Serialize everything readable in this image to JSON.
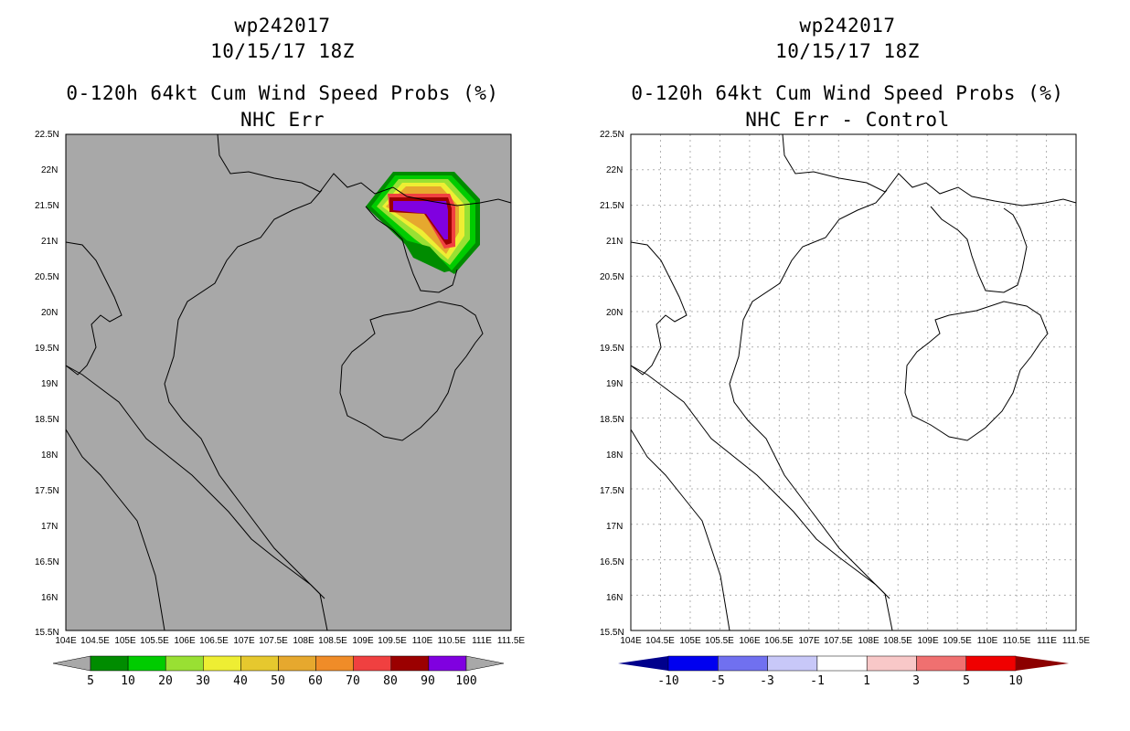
{
  "colors": {
    "land_bg_left": "#a8a8a8",
    "map_bg_right": "#ffffff",
    "grid": "#b0b0b0"
  },
  "left_panel": {
    "title_line1": "wp242017",
    "title_line2": "10/15/17 18Z",
    "title_line3": "0-120h 64kt Cum Wind Speed Probs (%)",
    "title_line4": "NHC Err",
    "colorbar": {
      "colors": [
        "#008c00",
        "#00cc00",
        "#99e033",
        "#eeee33",
        "#e6c82e",
        "#e6a82e",
        "#f08c28",
        "#f04040",
        "#9b0000",
        "#8000e0"
      ],
      "labels": [
        "5",
        "10",
        "20",
        "30",
        "40",
        "50",
        "60",
        "70",
        "80",
        "90",
        "100"
      ]
    }
  },
  "right_panel": {
    "title_line1": "wp242017",
    "title_line2": "10/15/17 18Z",
    "title_line3": "0-120h 64kt Cum Wind Speed Probs (%)",
    "title_line4": "NHC Err - Control",
    "colorbar": {
      "colors": [
        "#00008c",
        "#0000f0",
        "#7070f0",
        "#c8c8f8",
        "#ffffff",
        "#f8c8c8",
        "#f07070",
        "#f00000",
        "#8c0000"
      ],
      "labels": [
        "-10",
        "-5",
        "-3",
        "-1",
        "1",
        "3",
        "5",
        "10"
      ]
    }
  },
  "axes": {
    "lon_ticks": [
      "104E",
      "104.5E",
      "105E",
      "105.5E",
      "106E",
      "106.5E",
      "107E",
      "107.5E",
      "108E",
      "108.5E",
      "109E",
      "109.5E",
      "110E",
      "110.5E",
      "111E",
      "111.5E"
    ],
    "lat_ticks": [
      "22.5N",
      "22N",
      "21.5N",
      "21N",
      "20.5N",
      "20N",
      "19.5N",
      "19N",
      "18.5N",
      "18N",
      "17.5N",
      "17N",
      "16.5N",
      "16N",
      "15.5N"
    ]
  }
}
